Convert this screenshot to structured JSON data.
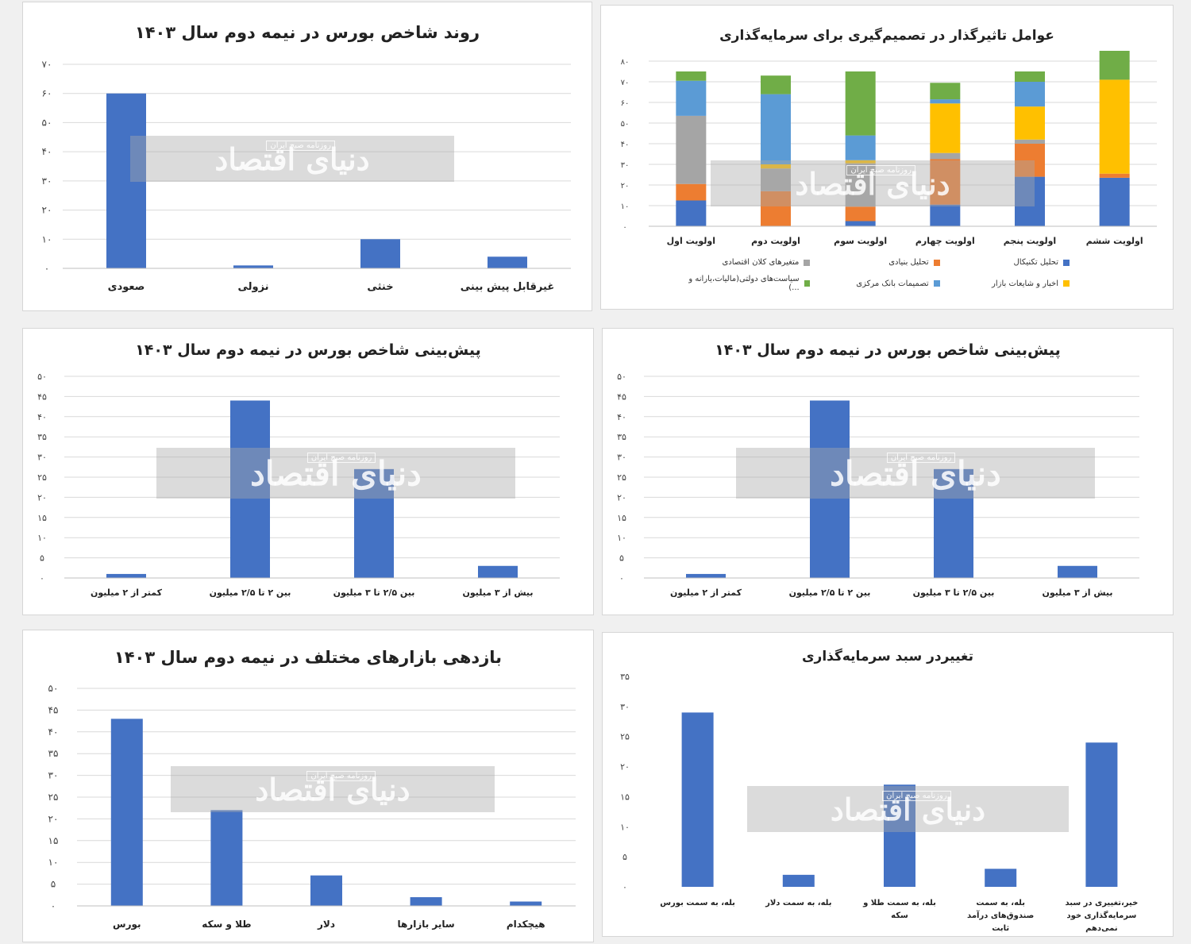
{
  "watermark": {
    "main": "دنیای اقتصاد",
    "sub": "روزنامه صبح ایران"
  },
  "colors": {
    "bar": "#4472c4",
    "grid": "#d9d9d9",
    "stack": [
      "#4472c4",
      "#ed7d31",
      "#a5a5a5",
      "#ffc000",
      "#5b9bd5",
      "#70ad47"
    ]
  },
  "chart_data": [
    {
      "id": "c1",
      "type": "bar",
      "title": "روند شاخص بورس در نیمه دوم سال ۱۴۰۳",
      "categories": [
        "صعودی",
        "نزولی",
        "خنثی",
        "غیرقابل پیش بینی"
      ],
      "values": [
        60,
        1,
        10,
        4
      ],
      "ylim": [
        0,
        70
      ],
      "yticks": [
        "۰",
        "۱۰",
        "۲۰",
        "۳۰",
        "۴۰",
        "۵۰",
        "۶۰",
        "۷۰"
      ],
      "grid": true
    },
    {
      "id": "c2",
      "type": "bar",
      "stacked": true,
      "title": "عوامل تاثیرگذار در تصمیم‌گیری برای سرمایه‌گذاری",
      "categories": [
        "اولویت اول",
        "اولویت دوم",
        "اولویت سوم",
        "اولویت چهارم",
        "اولویت پنجم",
        "اولویت ششم"
      ],
      "series": [
        {
          "name": "تحلیل تکنیکال",
          "values": [
            12.5,
            0,
            2.5,
            10.5,
            24,
            23.5
          ]
        },
        {
          "name": "تحلیل بنیادی",
          "values": [
            8,
            17,
            7,
            22,
            16,
            2
          ]
        },
        {
          "name": "متغیرهای کلان اقتصادی",
          "values": [
            33,
            11,
            21,
            3,
            2,
            0
          ]
        },
        {
          "name": "اخبار و شایعات بازار",
          "values": [
            0,
            2,
            1.5,
            24,
            16,
            45.5
          ]
        },
        {
          "name": "تصمیمات بانک مرکزی",
          "values": [
            17,
            34,
            12,
            2,
            12,
            0
          ]
        },
        {
          "name": "سیاست‌های دولتی(مالیات،یارانه و ...)",
          "values": [
            4.5,
            9,
            31,
            8,
            5,
            14
          ]
        }
      ],
      "ylim": [
        0,
        80
      ],
      "yticks": [
        "۰",
        "۱۰",
        "۲۰",
        "۳۰",
        "۴۰",
        "۵۰",
        "۶۰",
        "۷۰",
        "۸۰"
      ],
      "grid": true,
      "legend": "bottom"
    },
    {
      "id": "c3",
      "type": "bar",
      "title": "پیش‌بینی شاخص بورس در نیمه دوم سال ۱۴۰۳",
      "categories": [
        "کمتر از ۲ میلیون",
        "بین ۲ تا ۲/۵ میلیون",
        "بین ۲/۵ تا ۳ میلیون",
        "بیش از ۳ میلیون"
      ],
      "values": [
        1,
        44,
        27,
        3
      ],
      "ylim": [
        0,
        50
      ],
      "yticks": [
        "۰",
        "۵",
        "۱۰",
        "۱۵",
        "۲۰",
        "۲۵",
        "۳۰",
        "۳۵",
        "۴۰",
        "۴۵",
        "۵۰"
      ],
      "grid": true
    },
    {
      "id": "c4",
      "type": "bar",
      "title": "پیش‌بینی شاخص بورس در نیمه دوم سال ۱۴۰۳",
      "categories": [
        "کمتر از ۲ میلیون",
        "بین ۲ تا ۲/۵ میلیون",
        "بین ۲/۵ تا ۳ میلیون",
        "بیش از ۳ میلیون"
      ],
      "values": [
        1,
        44,
        27,
        3
      ],
      "ylim": [
        0,
        50
      ],
      "yticks": [
        "۰",
        "۵",
        "۱۰",
        "۱۵",
        "۲۰",
        "۲۵",
        "۳۰",
        "۳۵",
        "۴۰",
        "۴۵",
        "۵۰"
      ],
      "grid": true
    },
    {
      "id": "c5",
      "type": "bar",
      "title": "بازدهی بازارهای مختلف در نیمه دوم سال ۱۴۰۳",
      "categories": [
        "بورس",
        "طلا و سکه",
        "دلار",
        "سایر بازارها",
        "هیچکدام"
      ],
      "values": [
        43,
        22,
        7,
        2,
        1
      ],
      "ylim": [
        0,
        50
      ],
      "yticks": [
        "۰",
        "۵",
        "۱۰",
        "۱۵",
        "۲۰",
        "۲۵",
        "۳۰",
        "۳۵",
        "۴۰",
        "۴۵",
        "۵۰"
      ],
      "grid": true
    },
    {
      "id": "c6",
      "type": "bar",
      "title": "تغییردر سبد سرمایه‌گذاری",
      "categories": [
        "بله، به سمت بورس",
        "بله، به سمت دلار",
        "بله، به سمت طلا و سکه",
        "بله، به سمت صندوق‌های درآمد ثابت",
        "خیر،تغییری در سبد سرمایه‌گذاری خود نمی‌دهم"
      ],
      "values": [
        29,
        2,
        17,
        3,
        24
      ],
      "ylim": [
        0,
        35
      ],
      "yticks": [
        "۰",
        "۵",
        "۱۰",
        "۱۵",
        "۲۰",
        "۲۵",
        "۳۰",
        "۳۵"
      ],
      "grid": false
    }
  ]
}
